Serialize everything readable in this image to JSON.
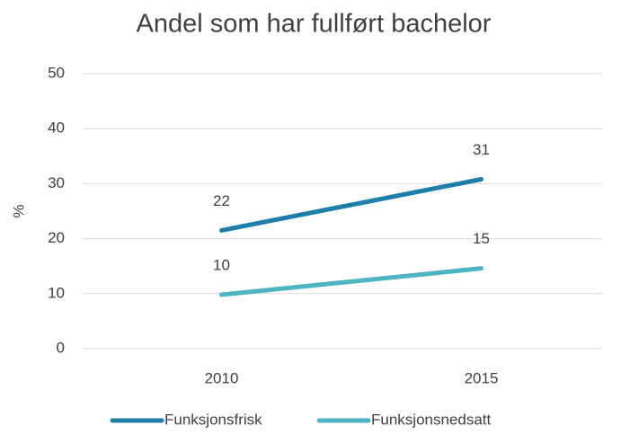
{
  "chart_data": {
    "type": "line",
    "title": "Andel som har fullført bachelor",
    "y_label": "%",
    "categories": [
      "2010",
      "2015"
    ],
    "series": [
      {
        "name": "Funksjonsfrisk",
        "color": "#1b7fa9",
        "values": [
          21.5,
          30.8
        ],
        "value_labels": [
          "22",
          "31"
        ]
      },
      {
        "name": "Funksjonsnedsatt",
        "color": "#4cb4c2",
        "values": [
          9.8,
          14.6
        ],
        "value_labels": [
          "10",
          "15"
        ]
      }
    ],
    "ylim": [
      0,
      50
    ],
    "yticks": [
      0,
      10,
      20,
      30,
      40,
      50
    ],
    "grid": true,
    "legend": "bottom"
  }
}
